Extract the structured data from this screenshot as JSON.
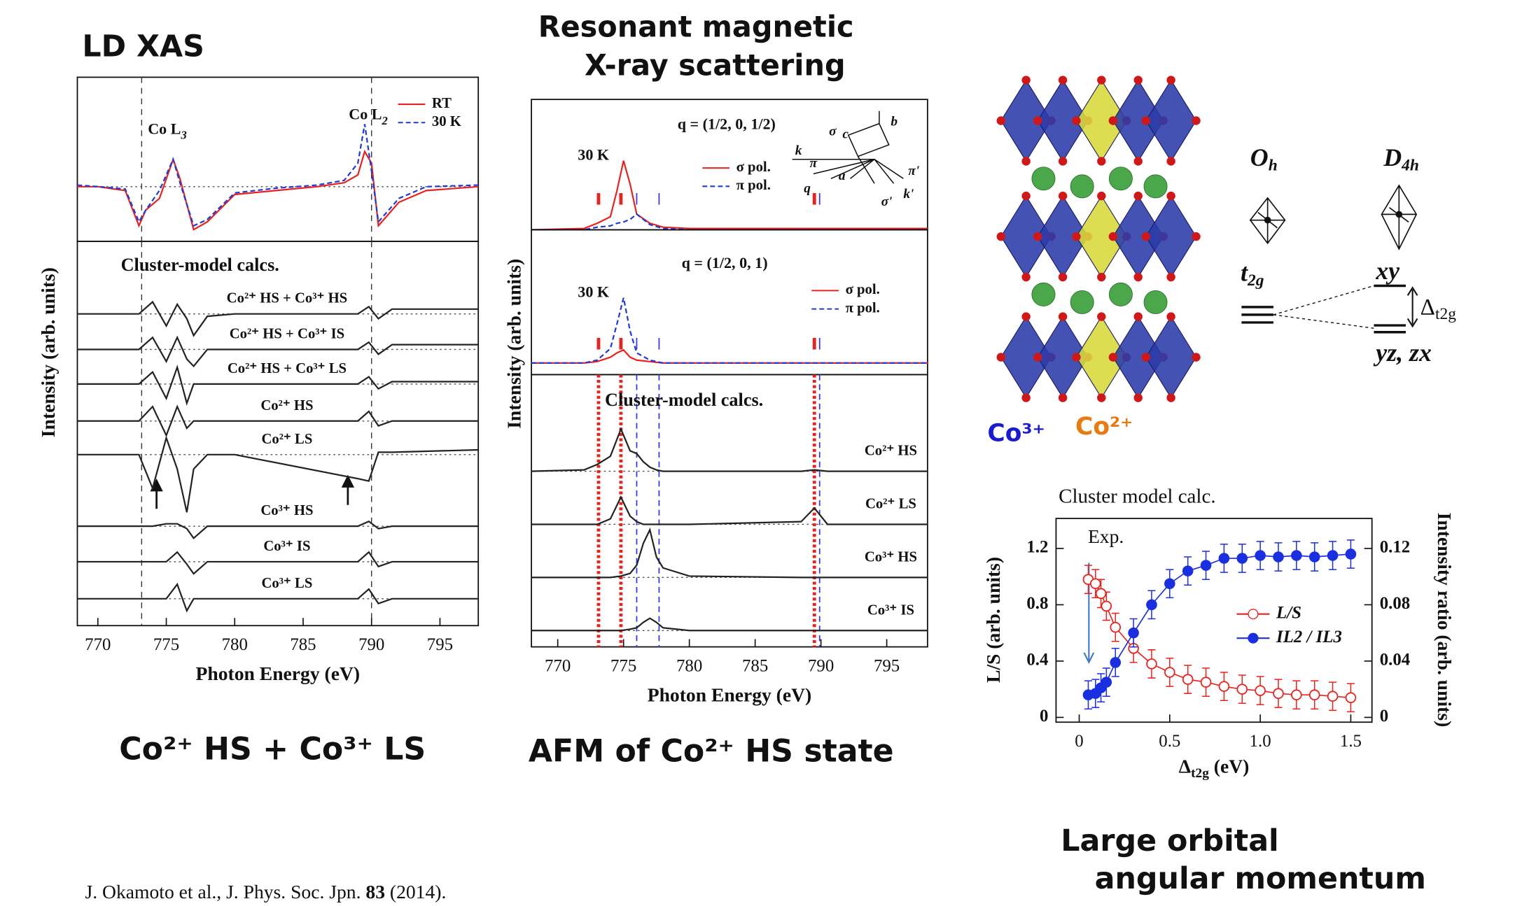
{
  "titles": {
    "ld_xas": "LD XAS",
    "rmxs_line1": "Resonant magnetic",
    "rmxs_line2": "X-ray scattering",
    "left_caption": "Co²⁺ HS + Co³⁺ LS",
    "middle_caption": "AFM of Co²⁺ HS state",
    "right_caption_line1": "Large orbital",
    "right_caption_line2": "angular momentum"
  },
  "citation": {
    "text": "J. Okamoto et al., J. Phys. Soc. Jpn. ",
    "volume": "83",
    "year": " (2014)."
  },
  "structure": {
    "co3_label": "Co³⁺",
    "co2_label": "Co²⁺"
  },
  "levels": {
    "oh": "O",
    "oh_sub": "h",
    "d4h": "D",
    "d4h_sub": "4h",
    "t2g": "t",
    "t2g_sub": "2g",
    "xy": "xy",
    "yzzx": "yz, zx",
    "delta": "Δ",
    "delta_sub": "t2g"
  },
  "chart_data": [
    {
      "type": "line",
      "xlim": [
        768.5,
        797.8
      ],
      "ylim": [
        -0.7,
        1.4
      ],
      "vlines": [
        773.2,
        790
      ],
      "legend": true,
      "annotations": [
        {
          "text": "Co L",
          "sub": "3"
        },
        {
          "text": "Co L",
          "sub": "2"
        }
      ],
      "x": [
        768.5,
        770,
        772,
        773,
        773.5,
        774.5,
        775.5,
        776,
        777,
        778,
        780,
        783,
        786,
        788,
        789,
        789.5,
        790,
        790.5,
        791,
        792,
        794,
        797.8
      ],
      "series": [
        {
          "name": "RT",
          "color": "#e8231f",
          "dash": false,
          "values": [
            0,
            0,
            -0.05,
            -0.5,
            -0.3,
            -0.15,
            0.35,
            0.1,
            -0.55,
            -0.45,
            -0.1,
            -0.05,
            0,
            0.05,
            0.15,
            0.45,
            0.3,
            -0.5,
            -0.4,
            -0.2,
            -0.05,
            0
          ]
        },
        {
          "name": "30 K",
          "color": "#1f3ad8",
          "dash": true,
          "values": [
            0.02,
            0,
            -0.03,
            -0.45,
            -0.3,
            -0.05,
            0.35,
            0.05,
            -0.5,
            -0.42,
            -0.08,
            -0.02,
            0.02,
            0.08,
            0.3,
            0.8,
            0.2,
            -0.45,
            -0.35,
            -0.15,
            0,
            0.02
          ]
        }
      ]
    },
    {
      "type": "line",
      "xlim": [
        768.5,
        797.8
      ],
      "ylim": [
        0,
        8
      ],
      "vlines": [
        773.2,
        790
      ],
      "series_labels": true,
      "panel_title": "Cluster-model calcs.",
      "xlabel": "Photon Energy (eV)",
      "ylabel": "Intensity (arb. units)",
      "xticks": [
        770,
        775,
        780,
        785,
        790,
        795
      ],
      "x": [
        768.5,
        773,
        774,
        775,
        775.8,
        776.5,
        777,
        778,
        780,
        789,
        789.8,
        790.5,
        791.5,
        797.8
      ],
      "series": [
        {
          "name": "Co²⁺ HS + Co³⁺ HS",
          "color": "#222222",
          "values": [
            6.49,
            6.49,
            6.74,
            6.24,
            6.69,
            6.39,
            6.04,
            6.44,
            6.49,
            6.49,
            6.64,
            6.39,
            6.59,
            6.59
          ]
        },
        {
          "name": "Co²⁺ HS + Co³⁺ IS",
          "color": "#222222",
          "values": [
            5.75,
            5.75,
            6.0,
            5.5,
            6.0,
            5.55,
            5.4,
            5.75,
            5.75,
            5.75,
            5.9,
            5.65,
            5.85,
            5.85
          ]
        },
        {
          "name": "Co²⁺ HS + Co³⁺ LS",
          "color": "#222222",
          "values": [
            5.03,
            5.03,
            5.28,
            4.73,
            5.38,
            4.63,
            5.03,
            5.03,
            5.03,
            5.03,
            5.18,
            4.93,
            5.08,
            5.08
          ]
        },
        {
          "name": "Co²⁺ HS",
          "color": "#222222",
          "values": [
            4.26,
            4.26,
            4.56,
            3.96,
            4.56,
            4.11,
            4.26,
            4.26,
            4.26,
            4.26,
            4.46,
            4.16,
            4.26,
            4.26
          ]
        },
        {
          "name": "Co²⁺ LS",
          "color": "#222222",
          "values": [
            3.56,
            3.56,
            2.86,
            3.91,
            3.26,
            2.36,
            3.26,
            3.56,
            3.56,
            3.06,
            3.01,
            3.61,
            3.61,
            3.66
          ]
        },
        {
          "name": "Co³⁺ HS",
          "color": "#222222",
          "values": [
            2.07,
            2.07,
            2.07,
            2.12,
            2.12,
            2.02,
            1.82,
            2.07,
            2.07,
            2.07,
            2.17,
            2.02,
            2.07,
            2.07
          ]
        },
        {
          "name": "Co³⁺ IS",
          "color": "#222222",
          "values": [
            1.33,
            1.33,
            1.33,
            1.33,
            1.53,
            1.28,
            1.08,
            1.33,
            1.33,
            1.33,
            1.53,
            1.23,
            1.33,
            1.33
          ]
        },
        {
          "name": "Co³⁺ LS",
          "color": "#222222",
          "values": [
            0.56,
            0.56,
            0.56,
            0.56,
            0.86,
            0.31,
            0.56,
            0.56,
            0.56,
            0.56,
            0.76,
            0.46,
            0.56,
            0.56
          ]
        }
      ]
    },
    {
      "type": "line",
      "xlim": [
        768,
        798.1
      ],
      "ylim": [
        0,
        1
      ],
      "legend": true,
      "annotations": [
        {
          "text": "q = (1/2, 0, 1/2)"
        },
        {
          "text": "30 K"
        }
      ],
      "inset_labels": [
        "σ",
        "c",
        "b",
        "k",
        "π",
        "q",
        "a",
        "π'",
        "σ'",
        "k'"
      ],
      "marker_sets": [
        {
          "color": "#e8231f",
          "values": [
            773.1,
            774.8,
            789.5
          ]
        },
        {
          "color": "#3a3ae0",
          "values": [
            776,
            777.7,
            789.9
          ]
        }
      ],
      "x": [
        768,
        772,
        773,
        774,
        774.5,
        775,
        775.5,
        776,
        777,
        778,
        780,
        789,
        790,
        798.1
      ],
      "series": [
        {
          "name": "σ pol.",
          "color": "#e8231f",
          "dash": false,
          "values": [
            0,
            0.01,
            0.05,
            0.1,
            0.3,
            0.53,
            0.35,
            0.12,
            0.05,
            0.02,
            0.01,
            0.01,
            0.01,
            0.01
          ]
        },
        {
          "name": "π pol.",
          "color": "#1f3ad8",
          "dash": true,
          "values": [
            0,
            0,
            0.02,
            0.03,
            0.05,
            0.06,
            0.08,
            0.12,
            0.04,
            0.01,
            0,
            0,
            0,
            0
          ]
        }
      ]
    },
    {
      "type": "line",
      "xlim": [
        768,
        798.1
      ],
      "ylim": [
        0,
        1
      ],
      "legend": true,
      "annotations": [
        {
          "text": "q = (1/2, 0, 1)"
        },
        {
          "text": "30 K"
        }
      ],
      "marker_sets": [
        {
          "color": "#e8231f",
          "values": [
            773.1,
            774.8,
            789.5
          ]
        },
        {
          "color": "#3a3ae0",
          "values": [
            776,
            777.7,
            789.9
          ]
        }
      ],
      "x": [
        768,
        772,
        773,
        774,
        774.5,
        775,
        775.5,
        776,
        777,
        778,
        780,
        789,
        790,
        798.1
      ],
      "series": [
        {
          "name": "σ pol.",
          "color": "#e8231f",
          "dash": false,
          "values": [
            0.08,
            0.08,
            0.09,
            0.12,
            0.15,
            0.17,
            0.12,
            0.1,
            0.09,
            0.08,
            0.08,
            0.08,
            0.08,
            0.08
          ]
        },
        {
          "name": "π pol.",
          "color": "#1f3ad8",
          "dash": true,
          "values": [
            0.08,
            0.08,
            0.1,
            0.18,
            0.35,
            0.53,
            0.3,
            0.15,
            0.1,
            0.08,
            0.08,
            0.08,
            0.08,
            0.08
          ]
        }
      ]
    },
    {
      "type": "line",
      "xlim": [
        768,
        798.1
      ],
      "ylim": [
        0,
        1
      ],
      "series_labels": true,
      "panel_title": "Cluster-model calcs.",
      "xlabel": "Photon Energy (eV)",
      "ylabel": "Intensity (arb. units)",
      "xticks": [
        770,
        775,
        780,
        785,
        790,
        795
      ],
      "marker_sets": [
        {
          "color": "#e8231f",
          "values": [
            773.1,
            774.8,
            789.5
          ]
        },
        {
          "color": "#3a3ae0",
          "values": [
            776,
            777.7,
            789.9
          ]
        }
      ],
      "x": [
        768,
        772,
        773,
        774,
        774.8,
        775.5,
        776,
        776.5,
        777,
        777.5,
        778,
        780,
        788.5,
        789.5,
        790.5,
        798.1
      ],
      "series": [
        {
          "name": "Co²⁺ HS",
          "color": "#222222",
          "values": [
            0.645,
            0.65,
            0.67,
            0.7,
            0.8,
            0.72,
            0.71,
            0.68,
            0.66,
            0.65,
            0.645,
            0.645,
            0.645,
            0.65,
            0.645,
            0.645
          ]
        },
        {
          "name": "Co²⁺ LS",
          "color": "#222222",
          "values": [
            0.45,
            0.45,
            0.45,
            0.47,
            0.55,
            0.48,
            0.46,
            0.45,
            0.45,
            0.45,
            0.45,
            0.45,
            0.46,
            0.51,
            0.45,
            0.45
          ]
        },
        {
          "name": "Co³⁺ HS",
          "color": "#222222",
          "values": [
            0.255,
            0.255,
            0.255,
            0.255,
            0.26,
            0.27,
            0.3,
            0.38,
            0.43,
            0.33,
            0.29,
            0.26,
            0.255,
            0.255,
            0.255,
            0.255
          ]
        },
        {
          "name": "Co³⁺ IS",
          "color": "#222222",
          "values": [
            0.06,
            0.06,
            0.06,
            0.06,
            0.06,
            0.065,
            0.07,
            0.09,
            0.105,
            0.09,
            0.07,
            0.06,
            0.06,
            0.06,
            0.06,
            0.06
          ]
        }
      ]
    },
    {
      "type": "line",
      "title": "Cluster model calc.",
      "legend": true,
      "xlabel": "Δ",
      "xlabel_sub": "t2g",
      "xlabel_unit": " (eV)",
      "ylabel": "L/S (arb. units)",
      "y2label": "Intensity ratio (arb. units)",
      "annotations": [
        {
          "text": "Exp."
        }
      ],
      "xlim": [
        -0.128,
        1.617
      ],
      "ylim": [
        -0.034,
        1.413
      ],
      "y2lim": [
        -0.0034,
        0.1413
      ],
      "xticks": [
        0,
        0.5,
        {
          "value": 1,
          "label": "1.0"
        },
        1.5
      ],
      "yticks": [
        0,
        0.4,
        0.8,
        1.2
      ],
      "y2ticks": [
        0,
        0.04,
        0.08,
        0.12
      ],
      "x": [
        0.05,
        0.09,
        0.12,
        0.15,
        0.2,
        0.3,
        0.4,
        0.5,
        0.6,
        0.7,
        0.8,
        0.9,
        1.0,
        1.1,
        1.2,
        1.3,
        1.4,
        1.5
      ],
      "series": [
        {
          "name": "L/S",
          "color": "#e8231f",
          "marker": "open",
          "values": [
            0.98,
            0.95,
            0.88,
            0.79,
            0.64,
            0.49,
            0.38,
            0.32,
            0.27,
            0.25,
            0.22,
            0.2,
            0.19,
            0.17,
            0.16,
            0.16,
            0.15,
            0.14
          ],
          "errors": [
            0.1,
            0.1,
            0.1,
            0.1,
            0.1,
            0.1,
            0.1,
            0.1,
            0.1,
            0.1,
            0.1,
            0.1,
            0.1,
            0.1,
            0.1,
            0.1,
            0.1,
            0.1
          ]
        },
        {
          "name": "IL2 / IL3",
          "color": "#1a2fe0",
          "marker": "filled",
          "axis": "y2",
          "values": [
            0.016,
            0.017,
            0.021,
            0.025,
            0.039,
            0.06,
            0.08,
            0.095,
            0.104,
            0.108,
            0.113,
            0.113,
            0.115,
            0.114,
            0.115,
            0.114,
            0.115,
            0.116
          ],
          "errors": [
            0.01,
            0.01,
            0.01,
            0.01,
            0.01,
            0.01,
            0.01,
            0.01,
            0.01,
            0.01,
            0.01,
            0.01,
            0.01,
            0.01,
            0.01,
            0.01,
            0.01,
            0.01
          ]
        }
      ]
    }
  ]
}
